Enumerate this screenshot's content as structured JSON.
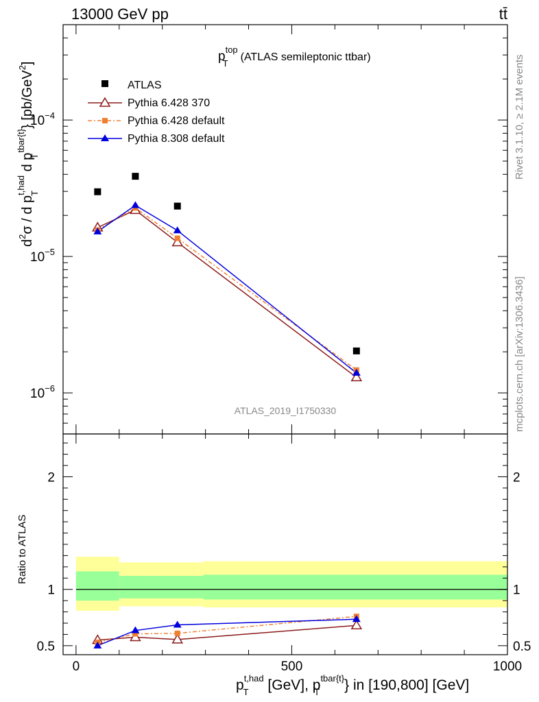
{
  "header": {
    "energy": "13000 GeV pp",
    "process": "tt̄"
  },
  "side_text": {
    "rivet": "Rivet 3.1.10, ≥ 2.1M events",
    "site": "mcplots.cern.ch [arXiv:1306.3436]"
  },
  "watermark": "ATLAS_2019_I1750330",
  "chart_data": [
    {
      "type": "scatter",
      "panel": "main",
      "title": {
        "p": "p",
        "sup": "top",
        "sub": "T",
        "rest": "(ATLAS semileptonic ttbar)"
      },
      "ylabel": "d²σ / d p_T^{t,had} d p_T^{tbar{t}} [pb/GeV²]",
      "ylabel_parts": {
        "d": "d",
        "sig": "σ",
        "slash": " /  d p",
        "thad": "t,had",
        "T": "T",
        "d2": " d p",
        "tbar": "tbar{t}",
        "unit": "} [pb/GeV",
        "two": "2",
        "close": "]"
      },
      "yscale": "log",
      "ylim": [
        5e-07,
        0.0005
      ],
      "xlim": [
        -30,
        1000
      ],
      "y_ticks": [
        {
          "value": 1e-06,
          "base": "10",
          "exp": "−6"
        },
        {
          "value": 1e-05,
          "base": "10",
          "exp": "−5"
        },
        {
          "value": 0.0001,
          "base": "10",
          "exp": "−4"
        }
      ],
      "legend": {
        "position": "top-left"
      },
      "series": [
        {
          "name": "ATLAS",
          "color": "#000000",
          "marker": "square",
          "x": [
            50,
            137.5,
            235,
            650
          ],
          "y": [
            2.98e-05,
            3.87e-05,
            2.34e-05,
            2.03e-06
          ]
        },
        {
          "name": "Pythia 6.428 370",
          "color": "#8b1a1a",
          "marker": "open-triangle",
          "line": "solid",
          "x": [
            50,
            137.5,
            235,
            650
          ],
          "y": [
            1.63e-05,
            2.19e-05,
            1.27e-05,
            1.3e-06
          ]
        },
        {
          "name": "Pythia 6.428 default",
          "color": "#f08030",
          "marker": "square",
          "line": "dashdot",
          "x": [
            50,
            137.5,
            235,
            650
          ],
          "y": [
            1.56e-05,
            2.27e-05,
            1.36e-05,
            1.47e-06
          ]
        },
        {
          "name": "Pythia 8.308 default",
          "color": "#0000dd",
          "marker": "triangle",
          "line": "solid",
          "x": [
            50,
            137.5,
            235,
            650
          ],
          "y": [
            1.52e-05,
            2.37e-05,
            1.55e-05,
            1.4e-06
          ]
        }
      ]
    },
    {
      "type": "line",
      "panel": "ratio",
      "ylabel": "Ratio to ATLAS",
      "ylim": [
        0.42,
        2.38
      ],
      "xlim": [
        -30,
        1000
      ],
      "y_ticks": [
        0.5,
        1,
        2
      ],
      "y_tick_labels": [
        "0.5",
        "1",
        "2"
      ],
      "x_ticks": [
        0,
        500,
        1000
      ],
      "x_tick_labels": [
        "0",
        "500",
        "1000"
      ],
      "xlabel_parts": {
        "p": "p",
        "thad": "t,had",
        "T": "T",
        "mid": " [GeV], p",
        "tbar": "tbar{t}",
        "T2": "T",
        "rest": "} in [190,800] [GeV]"
      },
      "bands": [
        {
          "x0": 0,
          "x1": 100,
          "yellow": [
            0.81,
            1.29
          ],
          "green": [
            0.9,
            1.16
          ]
        },
        {
          "x0": 100,
          "x1": 175,
          "yellow": [
            0.85,
            1.24
          ],
          "green": [
            0.92,
            1.12
          ]
        },
        {
          "x0": 175,
          "x1": 295,
          "yellow": [
            0.85,
            1.24
          ],
          "green": [
            0.92,
            1.12
          ]
        },
        {
          "x0": 295,
          "x1": 1000,
          "yellow": [
            0.84,
            1.25
          ],
          "green": [
            0.91,
            1.13
          ]
        }
      ],
      "series": [
        {
          "name": "Pythia 6.428 370",
          "color": "#8b1a1a",
          "marker": "open-triangle",
          "line": "solid",
          "x": [
            50,
            137.5,
            235,
            650
          ],
          "y": [
            0.55,
            0.575,
            0.555,
            0.68
          ]
        },
        {
          "name": "Pythia 6.428 default",
          "color": "#f08030",
          "marker": "square",
          "line": "dashdot",
          "x": [
            50,
            137.5,
            235,
            650
          ],
          "y": [
            0.53,
            0.605,
            0.61,
            0.76
          ]
        },
        {
          "name": "Pythia 8.308 default",
          "color": "#0000dd",
          "marker": "triangle",
          "line": "solid",
          "x": [
            50,
            137.5,
            235,
            650
          ],
          "y": [
            0.5,
            0.635,
            0.685,
            0.735
          ]
        }
      ]
    }
  ]
}
